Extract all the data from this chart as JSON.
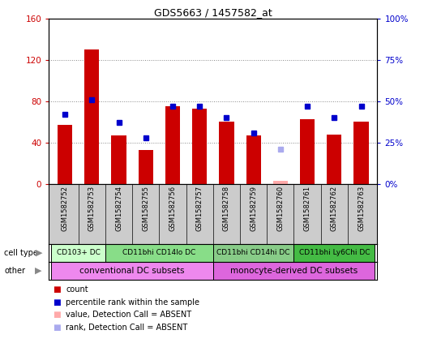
{
  "title": "GDS5663 / 1457582_at",
  "samples": [
    "GSM1582752",
    "GSM1582753",
    "GSM1582754",
    "GSM1582755",
    "GSM1582756",
    "GSM1582757",
    "GSM1582758",
    "GSM1582759",
    "GSM1582760",
    "GSM1582761",
    "GSM1582762",
    "GSM1582763"
  ],
  "counts": [
    57,
    130,
    47,
    33,
    75,
    73,
    60,
    47,
    3,
    63,
    48,
    60
  ],
  "percentile_ranks": [
    42,
    51,
    37,
    28,
    47,
    47,
    40,
    31,
    null,
    47,
    40,
    47
  ],
  "absent_count": [
    null,
    null,
    null,
    null,
    null,
    null,
    null,
    null,
    3,
    null,
    null,
    null
  ],
  "absent_rank": [
    null,
    null,
    null,
    null,
    null,
    null,
    null,
    null,
    21,
    null,
    null,
    null
  ],
  "cell_type_groups": [
    {
      "label": "CD103+ DC",
      "start": 0,
      "end": 1,
      "color": "#ccffcc"
    },
    {
      "label": "CD11bhi CD14lo DC",
      "start": 2,
      "end": 5,
      "color": "#88dd88"
    },
    {
      "label": "CD11bhi CD14hi DC",
      "start": 6,
      "end": 8,
      "color": "#88cc88"
    },
    {
      "label": "CD11bhi Ly6Chi DC",
      "start": 9,
      "end": 11,
      "color": "#44bb44"
    }
  ],
  "other_groups": [
    {
      "label": "conventional DC subsets",
      "start": 0,
      "end": 5,
      "color": "#ee88ee"
    },
    {
      "label": "monocyte-derived DC subsets",
      "start": 6,
      "end": 11,
      "color": "#dd66dd"
    }
  ],
  "ylim_left": [
    0,
    160
  ],
  "ylim_right": [
    0,
    100
  ],
  "yticks_left": [
    0,
    40,
    80,
    120,
    160
  ],
  "ytick_labels_left": [
    "0",
    "40",
    "80",
    "120",
    "160"
  ],
  "yticks_right": [
    0,
    25,
    50,
    75,
    100
  ],
  "ytick_labels_right": [
    "0%",
    "25%",
    "50%",
    "75%",
    "100%"
  ],
  "bar_color": "#cc0000",
  "dot_color": "#0000cc",
  "absent_bar_color": "#ffaaaa",
  "absent_dot_color": "#aaaaee",
  "grid_color": "#888888",
  "bg_color": "#cccccc",
  "plot_bg": "#ffffff",
  "legend_items": [
    {
      "label": "count",
      "color": "#cc0000"
    },
    {
      "label": "percentile rank within the sample",
      "color": "#0000cc"
    },
    {
      "label": "value, Detection Call = ABSENT",
      "color": "#ffaaaa"
    },
    {
      "label": "rank, Detection Call = ABSENT",
      "color": "#aaaaee"
    }
  ]
}
